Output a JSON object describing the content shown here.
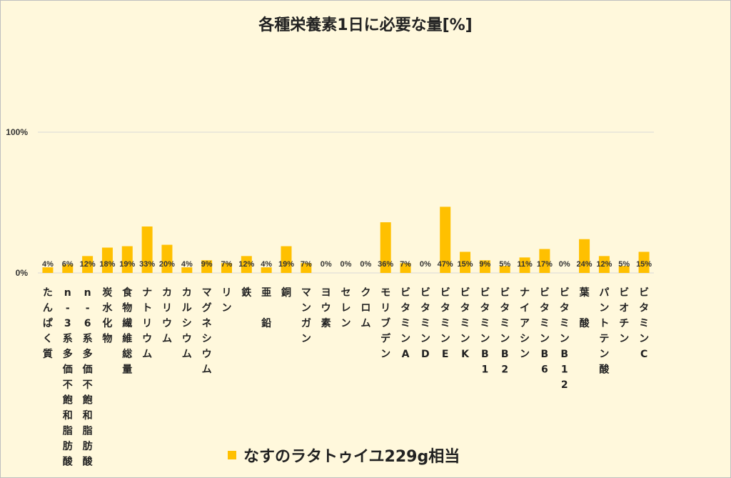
{
  "chart_data": {
    "type": "bar",
    "title": "各種栄養素1日に必要な量[%]",
    "y_ticks": [
      "0%",
      "100%"
    ],
    "ylim": [
      0,
      100
    ],
    "grid": true,
    "legend_position": "bottom",
    "bar_color": "#ffc000",
    "categories": [
      "たんぱく質",
      "n-3系多価不飽和脂肪酸",
      "n-6系多価不飽和脂肪酸",
      "炭水化物",
      "食物繊維総量",
      "ナトリウム",
      "カリウム",
      "カルシウム",
      "マグネシウム",
      "リン",
      "鉄",
      "亜 鉛",
      "銅",
      "マンガン",
      "ヨウ素",
      "セレン",
      "クロム",
      "モリブデン",
      "ビタミンA",
      "ビタミンD",
      "ビタミンE",
      "ビタミンK",
      "ビタミンB1",
      "ビタミンB2",
      "ナイアシン",
      "ビタミンB6",
      "ビタミンB12",
      "葉 酸",
      "パントテン酸",
      "ビオチン",
      "ビタミンC"
    ],
    "series": [
      {
        "name": "なすのラタトゥイユ229g相当",
        "values": [
          4,
          6,
          12,
          18,
          19,
          33,
          20,
          4,
          9,
          7,
          12,
          4,
          19,
          7,
          0,
          0,
          0,
          36,
          7,
          0,
          47,
          15,
          9,
          5,
          11,
          17,
          0,
          24,
          12,
          5,
          15
        ],
        "labels": [
          "4%",
          "6%",
          "12%",
          "18%",
          "19%",
          "33%",
          "20%",
          "4%",
          "9%",
          "7%",
          "12%",
          "4%",
          "19%",
          "7%",
          "0%",
          "0%",
          "0%",
          "36%",
          "7%",
          "0%",
          "47%",
          "15%",
          "9%",
          "5%",
          "11%",
          "17%",
          "0%",
          "24%",
          "12%",
          "5%",
          "15%"
        ]
      }
    ]
  }
}
